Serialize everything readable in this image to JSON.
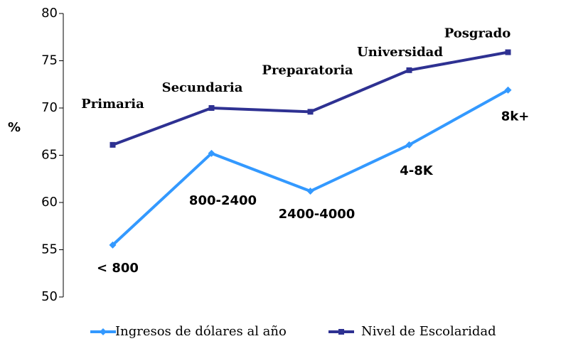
{
  "chart_data": {
    "type": "line",
    "y_label": "%",
    "categories": [
      null,
      null,
      null,
      null,
      null
    ],
    "series": [
      {
        "name": "Ingresos de dólares al año",
        "color": "#3399ff",
        "marker": "diamond",
        "values": [
          55.5,
          65.2,
          61.2,
          66.1,
          71.9
        ],
        "point_labels": [
          "< 800",
          "800-2400",
          "2400-4000",
          "4-8K",
          "8k+"
        ]
      },
      {
        "name": "Nivel de Escolaridad",
        "color": "#2e3192",
        "marker": "square",
        "values": [
          66.1,
          70,
          69.6,
          74,
          75.9
        ],
        "point_labels": [
          "Primaria",
          "Secundaria",
          "Preparatoria",
          "Universidad",
          "Posgrado"
        ]
      }
    ],
    "ylim": [
      50,
      80
    ],
    "yticks": [
      50,
      55,
      60,
      65,
      70,
      75,
      80
    ],
    "grid": false,
    "legend": "bottom"
  }
}
